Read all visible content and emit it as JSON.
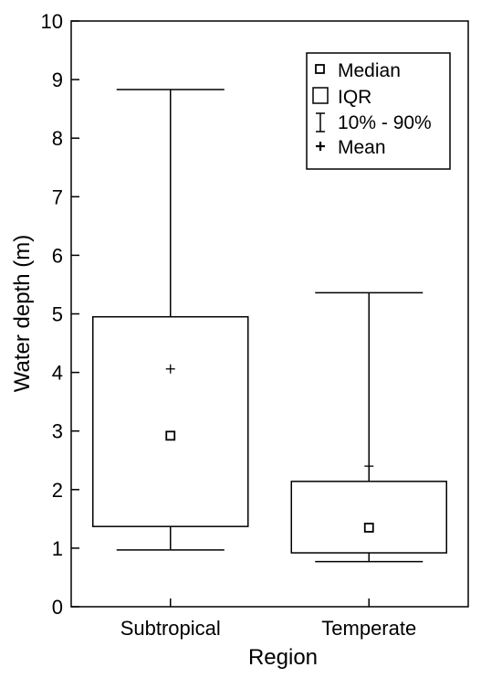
{
  "chart_data": {
    "type": "box",
    "xlabel": "Region",
    "ylabel": "Water depth (m)",
    "ylim": [
      0,
      10
    ],
    "yticks": [
      0,
      1,
      2,
      3,
      4,
      5,
      6,
      7,
      8,
      9,
      10
    ],
    "categories": [
      "Subtropical",
      "Temperate"
    ],
    "boxes": [
      {
        "category": "Subtropical",
        "p10": 0.97,
        "q1": 1.37,
        "median": 2.92,
        "q3": 4.95,
        "p90": 8.83,
        "mean": 4.06
      },
      {
        "category": "Temperate",
        "p10": 0.77,
        "q1": 0.92,
        "median": 1.35,
        "q3": 2.14,
        "p90": 5.36,
        "mean": 2.4
      }
    ],
    "legend": {
      "position": "top-right",
      "items": [
        {
          "symbol": "median-square",
          "label": "Median"
        },
        {
          "symbol": "iqr-box",
          "label": "IQR"
        },
        {
          "symbol": "whisker",
          "label": "10% - 90%"
        },
        {
          "symbol": "plus",
          "label": "Mean"
        }
      ]
    },
    "grid": false
  }
}
